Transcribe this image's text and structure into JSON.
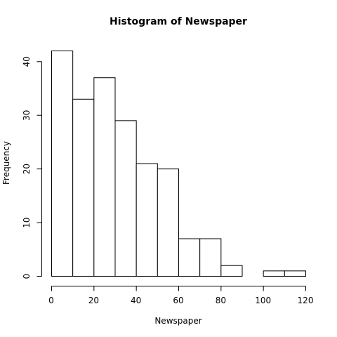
{
  "chart_data": {
    "type": "bar",
    "title": "Histogram of Newspaper",
    "xlabel": "Newspaper",
    "ylabel": "Frequency",
    "bins": [
      {
        "start": 0,
        "end": 10,
        "value": 42
      },
      {
        "start": 10,
        "end": 20,
        "value": 33
      },
      {
        "start": 20,
        "end": 30,
        "value": 37
      },
      {
        "start": 30,
        "end": 40,
        "value": 29
      },
      {
        "start": 40,
        "end": 50,
        "value": 21
      },
      {
        "start": 50,
        "end": 60,
        "value": 20
      },
      {
        "start": 60,
        "end": 70,
        "value": 7
      },
      {
        "start": 70,
        "end": 80,
        "value": 7
      },
      {
        "start": 80,
        "end": 90,
        "value": 2
      },
      {
        "start": 90,
        "end": 100,
        "value": 0
      },
      {
        "start": 100,
        "end": 110,
        "value": 1
      },
      {
        "start": 110,
        "end": 120,
        "value": 1
      }
    ],
    "xlim": [
      0,
      120
    ],
    "ylim": [
      0,
      42
    ],
    "x_ticks": [
      0,
      20,
      40,
      60,
      80,
      100,
      120
    ],
    "y_ticks": [
      0,
      10,
      20,
      30,
      40
    ],
    "grid": false,
    "bar_fill": "#ffffff",
    "bar_stroke": "#000000"
  }
}
